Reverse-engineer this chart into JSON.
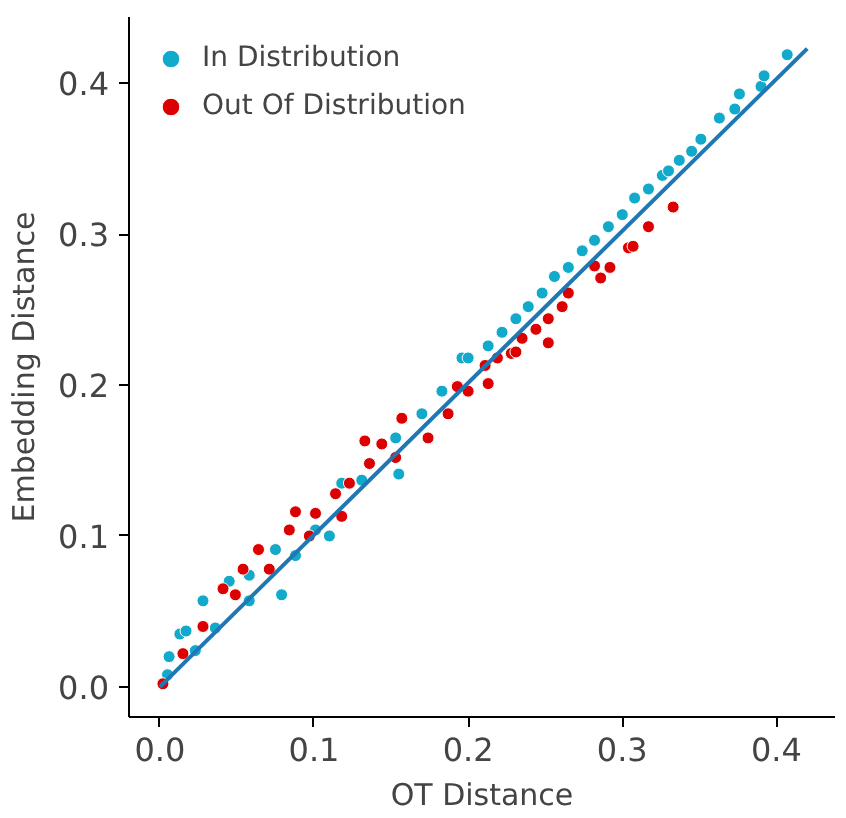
{
  "chart_data": {
    "type": "scatter",
    "xlabel": "OT Distance",
    "ylabel": "Embedding Distance",
    "xlim": [
      -0.02,
      0.438
    ],
    "ylim": [
      -0.02,
      0.444
    ],
    "xticks": [
      {
        "value": 0,
        "label": "0.0"
      },
      0.1,
      0.2,
      0.3,
      0.4
    ],
    "yticks": [
      {
        "value": 0,
        "label": "0.0"
      },
      0.1,
      0.2,
      0.3,
      0.4
    ],
    "grid": false,
    "legend": "top left",
    "series": [
      {
        "name": "In Distribution",
        "color": "#12aacb",
        "marker": "circle",
        "x": [
          0.005,
          0.006,
          0.013,
          0.017,
          0.023,
          0.028,
          0.036,
          0.045,
          0.058,
          0.058,
          0.075,
          0.079,
          0.088,
          0.101,
          0.11,
          0.118,
          0.131,
          0.153,
          0.155,
          0.17,
          0.183,
          0.196,
          0.2,
          0.213,
          0.222,
          0.231,
          0.239,
          0.248,
          0.256,
          0.265,
          0.274,
          0.282,
          0.291,
          0.3,
          0.308,
          0.317,
          0.326,
          0.33,
          0.337,
          0.345,
          0.351,
          0.363,
          0.373,
          0.376,
          0.39,
          0.392,
          0.407
        ],
        "values": [
          0.008,
          0.02,
          0.035,
          0.037,
          0.024,
          0.057,
          0.039,
          0.07,
          0.074,
          0.057,
          0.091,
          0.061,
          0.087,
          0.104,
          0.1,
          0.135,
          0.137,
          0.165,
          0.141,
          0.181,
          0.196,
          0.218,
          0.218,
          0.226,
          0.235,
          0.244,
          0.252,
          0.261,
          0.272,
          0.278,
          0.289,
          0.296,
          0.305,
          0.313,
          0.324,
          0.33,
          0.339,
          0.342,
          0.349,
          0.355,
          0.363,
          0.377,
          0.383,
          0.393,
          0.398,
          0.405,
          0.419
        ]
      },
      {
        "name": "Out Of Distribution",
        "color": "#dd0000",
        "marker": "circle",
        "x": [
          0.002,
          0.015,
          0.028,
          0.041,
          0.049,
          0.054,
          0.064,
          0.071,
          0.084,
          0.088,
          0.097,
          0.101,
          0.114,
          0.118,
          0.123,
          0.133,
          0.136,
          0.144,
          0.153,
          0.157,
          0.174,
          0.187,
          0.193,
          0.2,
          0.211,
          0.213,
          0.219,
          0.228,
          0.231,
          0.235,
          0.244,
          0.252,
          0.252,
          0.261,
          0.265,
          0.282,
          0.286,
          0.292,
          0.304,
          0.307,
          0.317,
          0.333
        ],
        "values": [
          0.002,
          0.022,
          0.04,
          0.065,
          0.061,
          0.078,
          0.091,
          0.078,
          0.104,
          0.116,
          0.1,
          0.115,
          0.128,
          0.113,
          0.135,
          0.163,
          0.148,
          0.161,
          0.152,
          0.178,
          0.165,
          0.181,
          0.199,
          0.196,
          0.213,
          0.201,
          0.218,
          0.221,
          0.222,
          0.231,
          0.237,
          0.244,
          0.228,
          0.252,
          0.261,
          0.279,
          0.271,
          0.278,
          0.291,
          0.292,
          0.305,
          0.318
        ]
      },
      {
        "type": "line",
        "color": "#1f77b4",
        "x": [
          0.0,
          0.42
        ],
        "values": [
          0.0,
          0.423
        ]
      }
    ]
  }
}
